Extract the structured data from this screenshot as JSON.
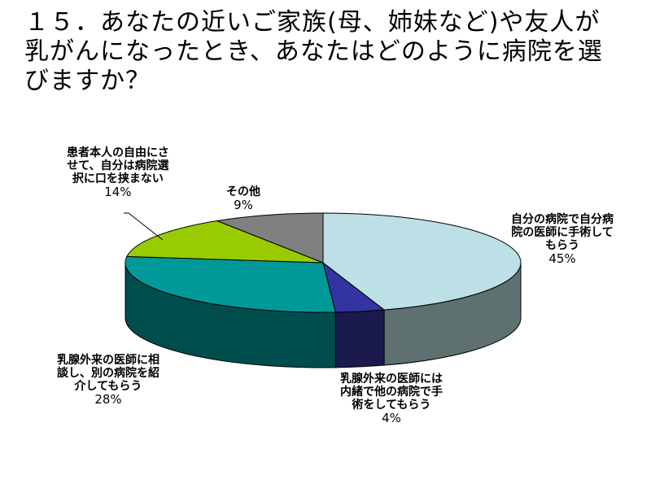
{
  "title": {
    "lines": [
      "１５．あなたの近いご家族(母、姉妹など)や友人が",
      "乳がんになったとき、あなたはどのように病院を選",
      "びますか？"
    ]
  },
  "chart_data": {
    "type": "pie",
    "style": "3d",
    "title": "１５．あなたの近いご家族(母、姉妹など)や友人が乳がんになったとき、あなたはどのように病院を選びますか？",
    "slices": [
      {
        "label_lines": [
          "自分の病院で自分病",
          "院の医師に手術して",
          "もらう"
        ],
        "label": "自分の病院で自分病院の医師に手術してもらう",
        "value": 45,
        "value_label": "45%",
        "color": "#bde0e6",
        "side_color": "#5e7170"
      },
      {
        "label_lines": [
          "乳腺外来の医師には",
          "内緒で他の病院で手",
          "術をしてもらう"
        ],
        "label": "乳腺外来の医師には内緒で他の病院で手術をしてもらう",
        "value": 4,
        "value_label": "4%",
        "color": "#3333a1",
        "side_color": "#1a1a4d"
      },
      {
        "label_lines": [
          "乳腺外来の医師に相",
          "談し、別の病院を紹",
          "介してもらう"
        ],
        "label": "乳腺外来の医師に相談し、別の病院を紹介してもらう",
        "value": 28,
        "value_label": "28%",
        "color": "#009999",
        "side_color": "#004d4d"
      },
      {
        "label_lines": [
          "患者本人の自由にさ",
          "せて、自分は病院選",
          "択に口を挟まない"
        ],
        "label": "患者本人の自由にさせて、自分は病院選択に口を挟まない",
        "value": 14,
        "value_label": "14%",
        "color": "#99cc00",
        "side_color": "#4d6600"
      },
      {
        "label_lines": [
          "その他"
        ],
        "label": "その他",
        "value": 9,
        "value_label": "9%",
        "color": "#808080",
        "side_color": "#404040"
      }
    ],
    "legend": "none"
  }
}
